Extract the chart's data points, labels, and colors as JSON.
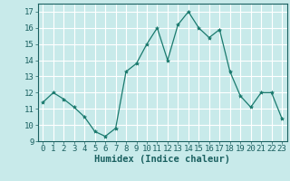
{
  "x": [
    0,
    1,
    2,
    3,
    4,
    5,
    6,
    7,
    8,
    9,
    10,
    11,
    12,
    13,
    14,
    15,
    16,
    17,
    18,
    19,
    20,
    21,
    22,
    23
  ],
  "y": [
    11.4,
    12.0,
    11.6,
    11.1,
    10.5,
    9.6,
    9.3,
    9.8,
    13.3,
    13.8,
    15.0,
    16.0,
    14.0,
    16.2,
    17.0,
    16.0,
    15.4,
    15.9,
    13.3,
    11.8,
    11.1,
    12.0,
    12.0,
    10.4
  ],
  "line_color": "#1a7a6e",
  "marker": "*",
  "marker_size": 3,
  "bg_color": "#c8eaea",
  "grid_color": "#ffffff",
  "tick_color": "#1a6060",
  "xlabel": "Humidex (Indice chaleur)",
  "ylim": [
    9,
    17.5
  ],
  "xlim": [
    -0.5,
    23.5
  ],
  "yticks": [
    9,
    10,
    11,
    12,
    13,
    14,
    15,
    16,
    17
  ],
  "xticks": [
    0,
    1,
    2,
    3,
    4,
    5,
    6,
    7,
    8,
    9,
    10,
    11,
    12,
    13,
    14,
    15,
    16,
    17,
    18,
    19,
    20,
    21,
    22,
    23
  ],
  "xlabel_fontsize": 7.5,
  "tick_fontsize": 6.5
}
